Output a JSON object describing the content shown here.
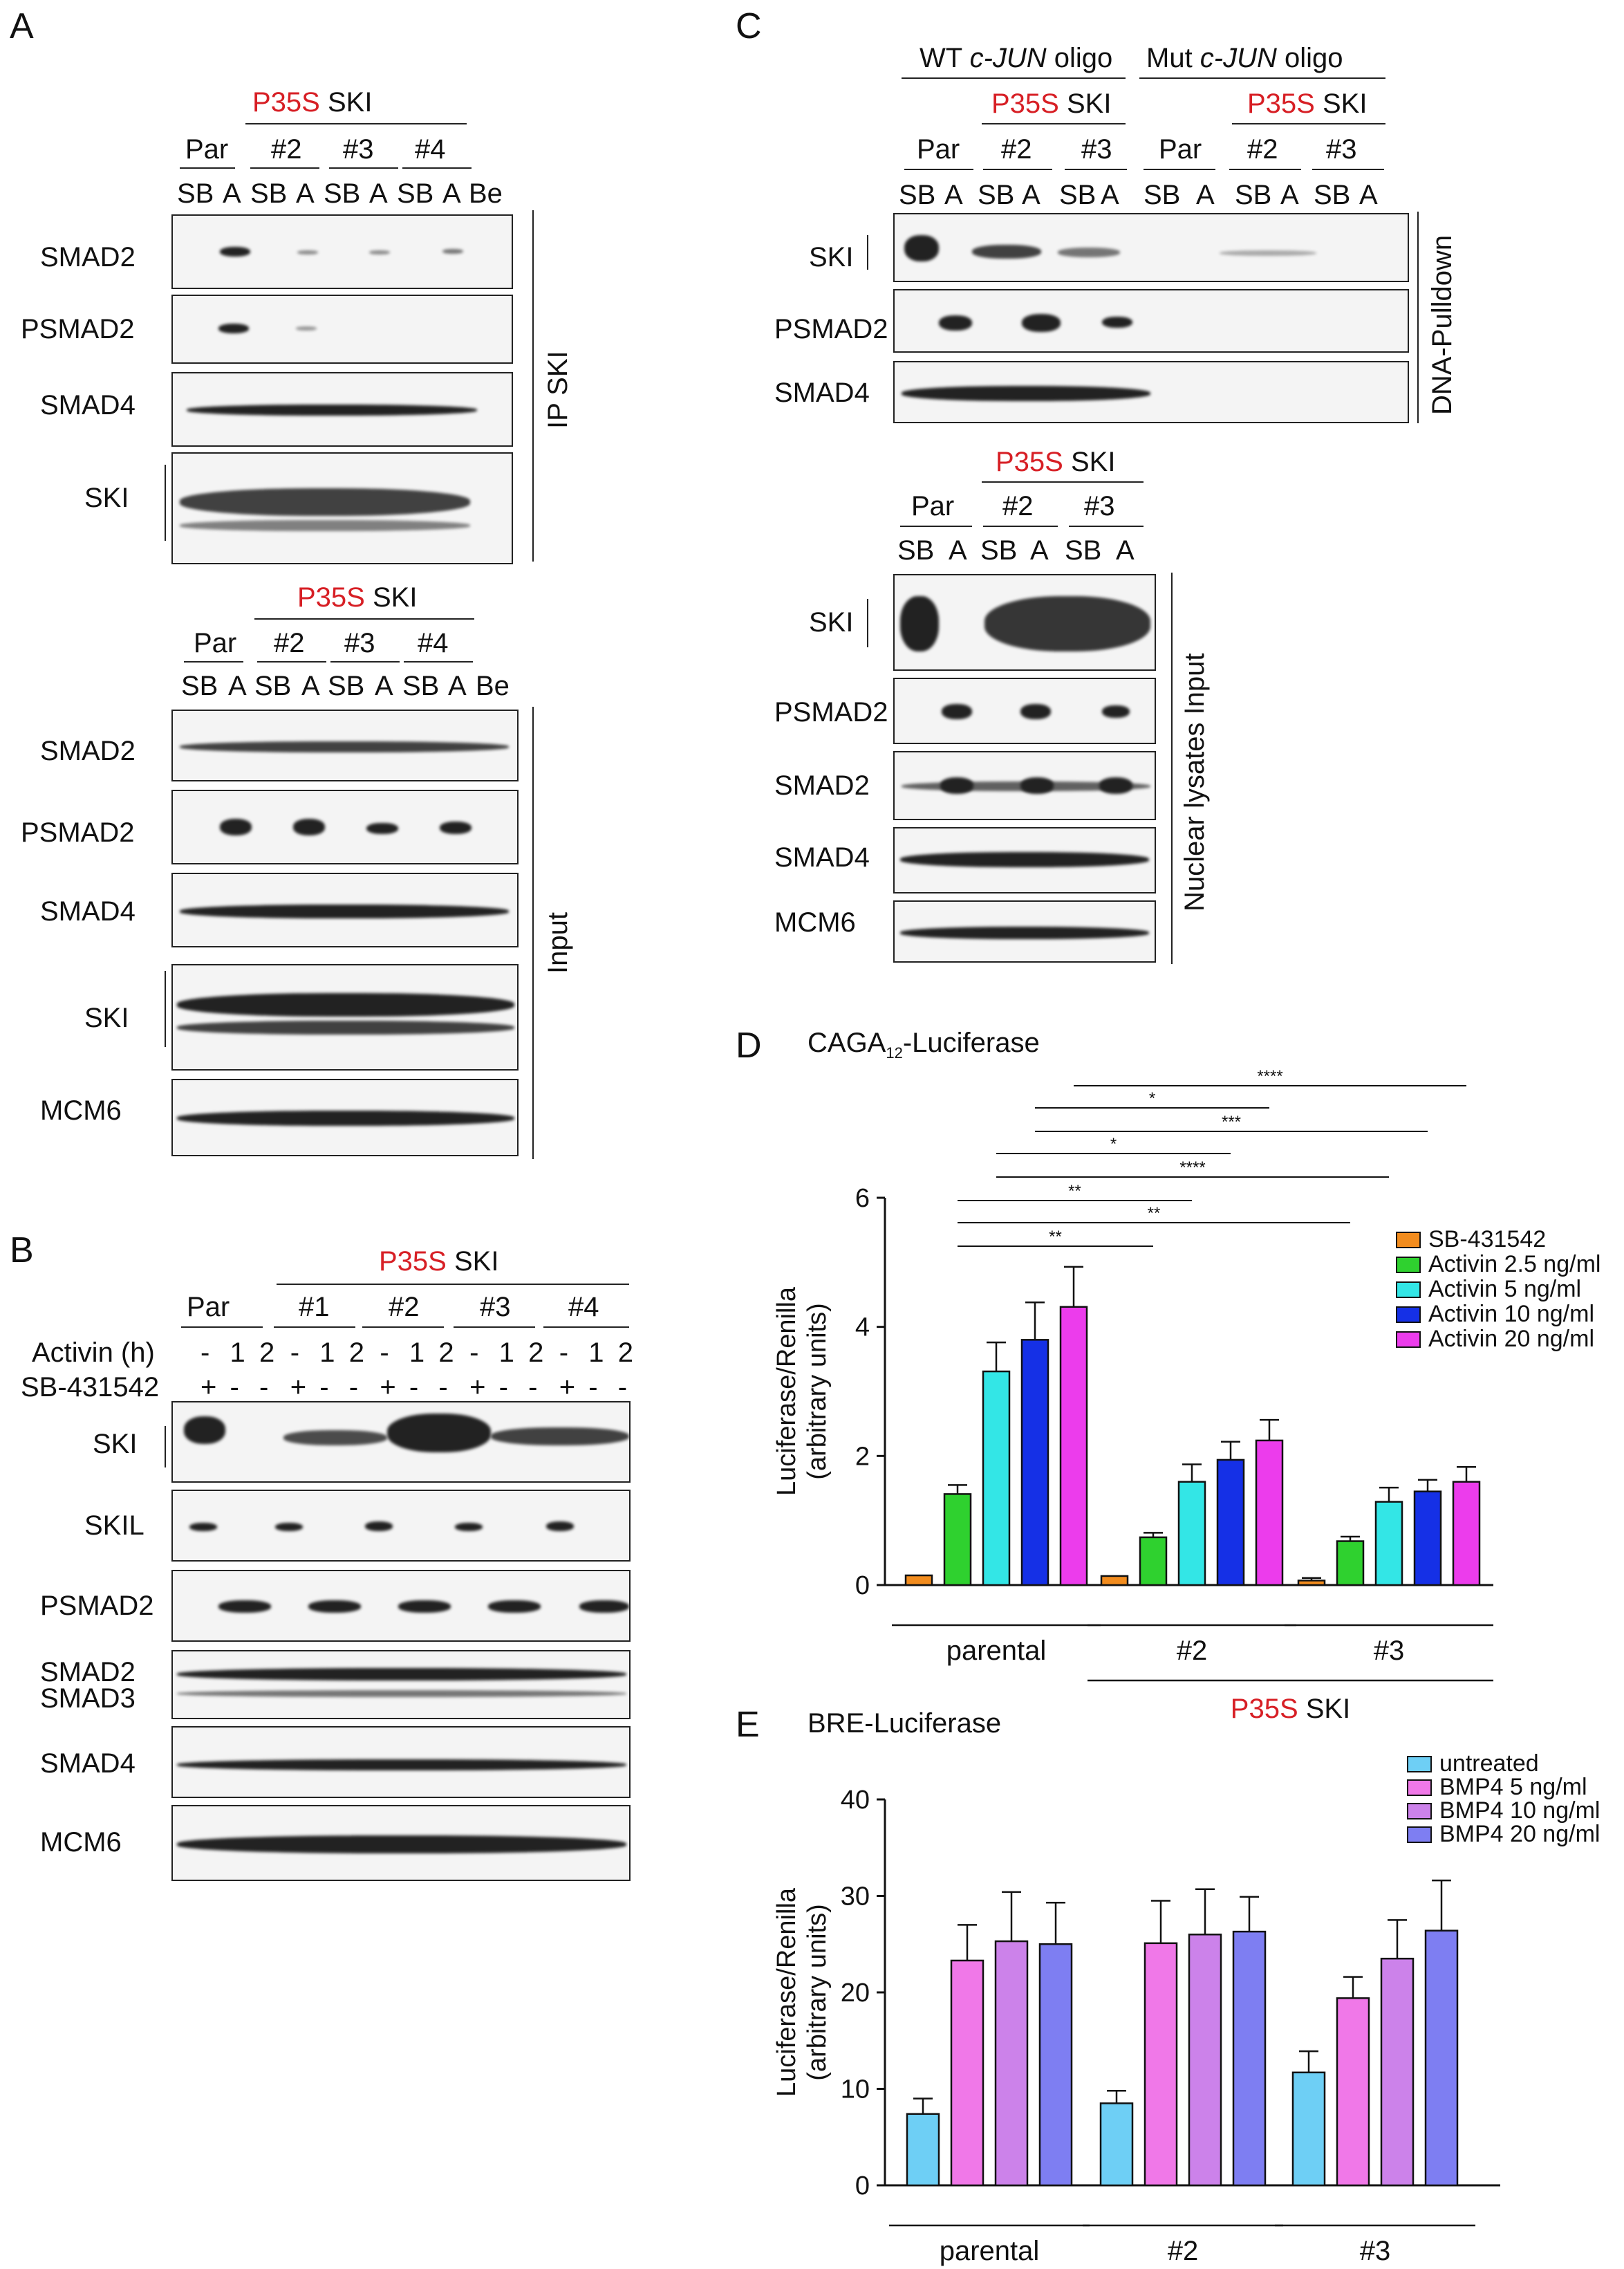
{
  "panels": {
    "A": {
      "letter": "A",
      "header_red": "P35S",
      "header_black": "SKI",
      "groups": [
        "Par",
        "#2",
        "#3",
        "#4"
      ],
      "lanes": [
        "SB",
        "A",
        "SB",
        "A",
        "SB",
        "A",
        "SB",
        "A",
        "Be"
      ],
      "ip_rows": [
        "SMAD2",
        "PSMAD2",
        "SMAD4",
        "SKI"
      ],
      "ip_side": "IP SKI",
      "input_rows": [
        "SMAD2",
        "PSMAD2",
        "SMAD4",
        "SKI",
        "MCM6"
      ],
      "input_side": "Input"
    },
    "B": {
      "letter": "B",
      "header_red": "P35S",
      "header_black": "SKI",
      "groups": [
        "Par",
        "#1",
        "#2",
        "#3",
        "#4"
      ],
      "activin_label": "Activin (h)",
      "activin_marks": [
        "-",
        "1",
        "2",
        "-",
        "1",
        "2",
        "-",
        "1",
        "2",
        "-",
        "1",
        "2",
        "-",
        "1",
        "2"
      ],
      "sb_label": "SB-431542",
      "sb_marks": [
        "+",
        "-",
        "-",
        "+",
        "-",
        "-",
        "+",
        "-",
        "-",
        "+",
        "-",
        "-",
        "+",
        "-",
        "-"
      ],
      "rows": [
        "SKI",
        "SKIL",
        "PSMAD2",
        "SMAD2",
        "SMAD3",
        "SMAD4",
        "MCM6"
      ]
    },
    "C": {
      "letter": "C",
      "wt_pre": "WT ",
      "wt_it": "c-JUN",
      "wt_post": " oligo",
      "mut_pre": "Mut ",
      "mut_it": "c-JUN",
      "mut_post": " oligo",
      "header_red": "P35S",
      "header_black": "SKI",
      "groups": [
        "Par",
        "#2",
        "#3",
        "Par",
        "#2",
        "#3"
      ],
      "lanes": [
        "SB",
        "A",
        "SB",
        "A",
        "SB",
        "A",
        "SB",
        "A",
        "SB",
        "A",
        "SB",
        "A"
      ],
      "pull_rows": [
        "SKI",
        "PSMAD2",
        "SMAD4"
      ],
      "pull_side": "DNA-Pulldown",
      "input_groups": [
        "Par",
        "#2",
        "#3"
      ],
      "input_lanes": [
        "SB",
        "A",
        "SB",
        "A",
        "SB",
        "A"
      ],
      "input_rows": [
        "SKI",
        "PSMAD2",
        "SMAD2",
        "SMAD4",
        "MCM6"
      ],
      "input_side": "Nuclear lysates Input"
    },
    "D": {
      "letter": "D"
    },
    "E": {
      "letter": "E"
    }
  },
  "chart_data": [
    {
      "type": "bar",
      "title_pre": "CAGA",
      "title_sub": "12",
      "title_post": "-Luciferase",
      "ylabel_1": "Luciferase/Renilla",
      "ylabel_2": "(arbitrary units)",
      "ylim": [
        0,
        6
      ],
      "yticks": [
        "0",
        "2",
        "4",
        "6"
      ],
      "categories": [
        "parental",
        "#2",
        "#3"
      ],
      "group_label_red": "P35S",
      "group_label_black": "SKI",
      "series": [
        {
          "name": "SB-431542",
          "color": "#f28c1e",
          "values": [
            0.15,
            0.14,
            0.07
          ],
          "errors": [
            0.0,
            0.0,
            0.04
          ]
        },
        {
          "name": "Activin 2.5 ng/ml",
          "color": "#2fd12f",
          "values": [
            1.41,
            0.74,
            0.68
          ],
          "errors": [
            0.14,
            0.07,
            0.07
          ]
        },
        {
          "name": "Activin 5 ng/ml",
          "color": "#33e6e6",
          "values": [
            3.31,
            1.6,
            1.29
          ],
          "errors": [
            0.45,
            0.27,
            0.22
          ]
        },
        {
          "name": "Activin 10 ng/ml",
          "color": "#1530e6",
          "values": [
            3.8,
            1.94,
            1.45
          ],
          "errors": [
            0.58,
            0.28,
            0.18
          ]
        },
        {
          "name": "Activin 20 ng/ml",
          "color": "#ec3cec",
          "values": [
            4.31,
            2.24,
            1.6
          ],
          "errors": [
            0.62,
            0.32,
            0.23
          ]
        }
      ],
      "significance": [
        "****",
        "*",
        "***",
        "*",
        "****",
        "**",
        "**",
        "**"
      ]
    },
    {
      "type": "bar",
      "title": "BRE-Luciferase",
      "ylabel_1": "Luciferase/Renilla",
      "ylabel_2": "(arbitrary units)",
      "ylim": [
        0,
        40
      ],
      "yticks": [
        "0",
        "10",
        "20",
        "30",
        "40"
      ],
      "categories": [
        "parental",
        "#2",
        "#3"
      ],
      "group_label_red": "P35S",
      "group_label_black": "SKI",
      "series": [
        {
          "name": "untreated",
          "color": "#6ecff5",
          "values": [
            7.4,
            8.5,
            11.7
          ],
          "errors": [
            1.6,
            1.3,
            2.2
          ]
        },
        {
          "name": "BMP4 5 ng/ml",
          "color": "#f078e8",
          "values": [
            23.3,
            25.1,
            19.4
          ],
          "errors": [
            3.7,
            4.4,
            2.2
          ]
        },
        {
          "name": "BMP4 10 ng/ml",
          "color": "#cc82ea",
          "values": [
            25.3,
            26.0,
            23.5
          ],
          "errors": [
            5.1,
            4.7,
            4.0
          ]
        },
        {
          "name": "BMP4 20 ng/ml",
          "color": "#7e7ef2",
          "values": [
            25.0,
            26.3,
            26.4
          ],
          "errors": [
            4.3,
            3.6,
            5.2
          ]
        }
      ]
    }
  ]
}
